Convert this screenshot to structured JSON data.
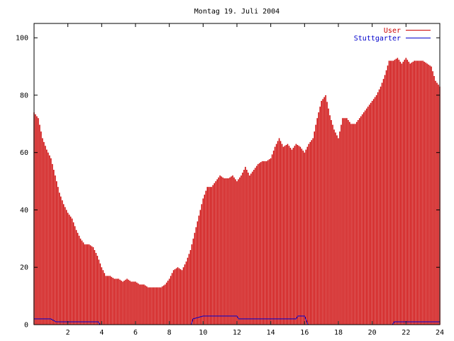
{
  "chart_data": {
    "type": "bar",
    "title": "Montag 19. Juli 2004",
    "xlabel": "",
    "ylabel": "",
    "xlim": [
      0,
      24
    ],
    "ylim": [
      0,
      105
    ],
    "x_ticks": [
      {
        "value": 2,
        "label": "2"
      },
      {
        "value": 4,
        "label": "4"
      },
      {
        "value": 6,
        "label": "6"
      },
      {
        "value": 8,
        "label": "8"
      },
      {
        "value": 10,
        "label": "10"
      },
      {
        "value": 12,
        "label": "12"
      },
      {
        "value": 14,
        "label": "14"
      },
      {
        "value": 16,
        "label": "16"
      },
      {
        "value": 18,
        "label": "18"
      },
      {
        "value": 20,
        "label": "20"
      },
      {
        "value": 22,
        "label": "22"
      },
      {
        "value": 24,
        "label": "24"
      }
    ],
    "y_ticks": [
      {
        "value": 0,
        "label": "0"
      },
      {
        "value": 20,
        "label": "20"
      },
      {
        "value": 40,
        "label": "40"
      },
      {
        "value": 60,
        "label": "60"
      },
      {
        "value": 80,
        "label": "80"
      },
      {
        "value": 100,
        "label": "100"
      }
    ],
    "grid": false,
    "legend": "top-right",
    "series": [
      {
        "name": "User",
        "color": "#cc0000",
        "style": "impulses",
        "points": [
          [
            0,
            74
          ],
          [
            0.25,
            72
          ],
          [
            0.5,
            65
          ],
          [
            0.75,
            61
          ],
          [
            1,
            58
          ],
          [
            1.25,
            52
          ],
          [
            1.5,
            46
          ],
          [
            1.75,
            42
          ],
          [
            2,
            39
          ],
          [
            2.25,
            37
          ],
          [
            2.5,
            33
          ],
          [
            2.75,
            30
          ],
          [
            3,
            28
          ],
          [
            3.25,
            28
          ],
          [
            3.5,
            27
          ],
          [
            3.75,
            24
          ],
          [
            4,
            20
          ],
          [
            4.25,
            17
          ],
          [
            4.5,
            17
          ],
          [
            4.75,
            16
          ],
          [
            5,
            16
          ],
          [
            5.25,
            15
          ],
          [
            5.5,
            16
          ],
          [
            5.75,
            15
          ],
          [
            6,
            15
          ],
          [
            6.25,
            14
          ],
          [
            6.5,
            14
          ],
          [
            6.75,
            13
          ],
          [
            7,
            13
          ],
          [
            7.25,
            13
          ],
          [
            7.5,
            13
          ],
          [
            7.75,
            14
          ],
          [
            8,
            16
          ],
          [
            8.25,
            19
          ],
          [
            8.5,
            20
          ],
          [
            8.75,
            19
          ],
          [
            9,
            22
          ],
          [
            9.25,
            26
          ],
          [
            9.5,
            32
          ],
          [
            9.75,
            38
          ],
          [
            10,
            44
          ],
          [
            10.25,
            48
          ],
          [
            10.5,
            48
          ],
          [
            10.75,
            50
          ],
          [
            11,
            52
          ],
          [
            11.25,
            51
          ],
          [
            11.5,
            51
          ],
          [
            11.75,
            52
          ],
          [
            12,
            50
          ],
          [
            12.25,
            52
          ],
          [
            12.5,
            55
          ],
          [
            12.75,
            52
          ],
          [
            13,
            54
          ],
          [
            13.25,
            56
          ],
          [
            13.5,
            57
          ],
          [
            13.75,
            57
          ],
          [
            14,
            58
          ],
          [
            14.25,
            62
          ],
          [
            14.5,
            65
          ],
          [
            14.75,
            62
          ],
          [
            15,
            63
          ],
          [
            15.25,
            61
          ],
          [
            15.5,
            63
          ],
          [
            15.75,
            62
          ],
          [
            16,
            60
          ],
          [
            16.25,
            63
          ],
          [
            16.5,
            65
          ],
          [
            16.75,
            72
          ],
          [
            17,
            78
          ],
          [
            17.25,
            80
          ],
          [
            17.5,
            73
          ],
          [
            17.75,
            68
          ],
          [
            18,
            65
          ],
          [
            18.25,
            72
          ],
          [
            18.5,
            72
          ],
          [
            18.75,
            70
          ],
          [
            19,
            70
          ],
          [
            19.25,
            72
          ],
          [
            19.5,
            74
          ],
          [
            19.75,
            76
          ],
          [
            20,
            78
          ],
          [
            20.25,
            80
          ],
          [
            20.5,
            83
          ],
          [
            20.75,
            87
          ],
          [
            21,
            92
          ],
          [
            21.25,
            92
          ],
          [
            21.5,
            93
          ],
          [
            21.75,
            91
          ],
          [
            22,
            93
          ],
          [
            22.25,
            91
          ],
          [
            22.5,
            92
          ],
          [
            22.75,
            92
          ],
          [
            23,
            92
          ],
          [
            23.25,
            91
          ],
          [
            23.5,
            90
          ],
          [
            23.75,
            85
          ],
          [
            24,
            83
          ]
        ]
      },
      {
        "name": "Stuttgarter",
        "color": "#0000cc",
        "style": "lines",
        "points": [
          [
            0,
            2
          ],
          [
            1,
            2
          ],
          [
            1.3,
            1
          ],
          [
            3.8,
            1
          ],
          [
            3.9,
            0
          ],
          [
            9.3,
            0
          ],
          [
            9.4,
            2
          ],
          [
            10,
            3
          ],
          [
            12,
            3
          ],
          [
            12.1,
            2
          ],
          [
            15.5,
            2
          ],
          [
            15.6,
            3
          ],
          [
            16,
            3
          ],
          [
            16.2,
            0
          ],
          [
            21.2,
            0
          ],
          [
            21.3,
            1
          ],
          [
            24,
            1
          ]
        ]
      }
    ]
  }
}
